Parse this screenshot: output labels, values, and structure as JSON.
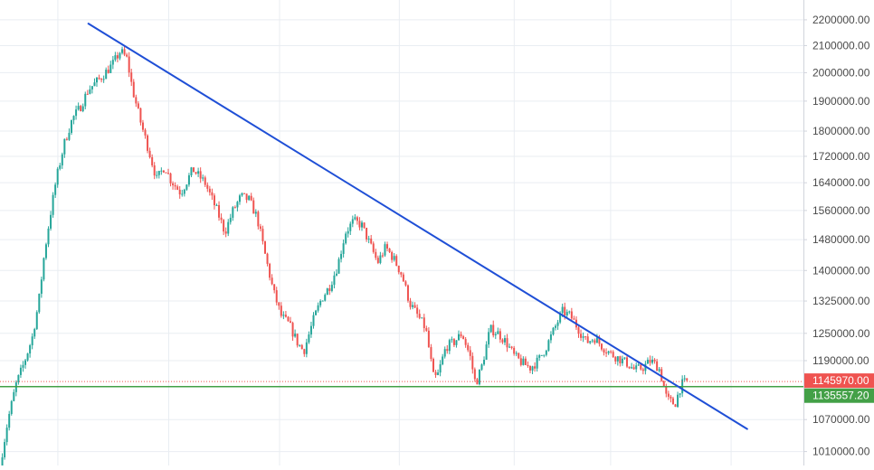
{
  "theme": {
    "background": "#ffffff",
    "grid": "#e9edf2",
    "axis_text": "#4a4a4a",
    "axis_border": "#d1d4dc",
    "up_color": "#26a69a",
    "down_color": "#ef5350",
    "trendline_color": "#1f4fd6",
    "last_price_color": "#ef5350",
    "level_color": "#43a047"
  },
  "chart_data": {
    "type": "candlestick",
    "y_scale": "log",
    "ylim": [
      985000,
      2280000
    ],
    "grid": true,
    "price_axis_ticks": [
      2200000,
      2100000,
      2000000,
      1900000,
      1800000,
      1720000,
      1640000,
      1560000,
      1480000,
      1400000,
      1325000,
      1250000,
      1190000,
      1070000,
      1010000
    ],
    "price_axis_ticks_text": [
      "2200000.00",
      "2100000.00",
      "2000000.00",
      "1900000.00",
      "1800000.00",
      "1720000.00",
      "1640000.00",
      "1560000.00",
      "1480000.00",
      "1400000.00",
      "1325000.00",
      "1250000.00",
      "1190000.00",
      "1070000.00",
      "1010000.00"
    ],
    "last_price": {
      "value": 1145970,
      "label": "1145970.00"
    },
    "horizontal_level": {
      "value": 1135557.2,
      "label": "1135557.20"
    },
    "trendline": {
      "start": [
        0.11,
        2185000
      ],
      "end": [
        0.93,
        1052000
      ]
    },
    "close_path": [
      [
        0.0,
        985000
      ],
      [
        0.01,
        1070000
      ],
      [
        0.02,
        1140000
      ],
      [
        0.03,
        1185000
      ],
      [
        0.04,
        1240000
      ],
      [
        0.048,
        1320000
      ],
      [
        0.055,
        1440000
      ],
      [
        0.062,
        1540000
      ],
      [
        0.07,
        1650000
      ],
      [
        0.08,
        1760000
      ],
      [
        0.09,
        1840000
      ],
      [
        0.1,
        1880000
      ],
      [
        0.11,
        1940000
      ],
      [
        0.125,
        1980000
      ],
      [
        0.14,
        2030000
      ],
      [
        0.15,
        2080000
      ],
      [
        0.158,
        2050000
      ],
      [
        0.165,
        1940000
      ],
      [
        0.175,
        1830000
      ],
      [
        0.185,
        1740000
      ],
      [
        0.195,
        1650000
      ],
      [
        0.205,
        1690000
      ],
      [
        0.212,
        1650000
      ],
      [
        0.225,
        1610000
      ],
      [
        0.24,
        1680000
      ],
      [
        0.255,
        1640000
      ],
      [
        0.27,
        1560000
      ],
      [
        0.28,
        1500000
      ],
      [
        0.29,
        1560000
      ],
      [
        0.3,
        1600000
      ],
      [
        0.31,
        1590000
      ],
      [
        0.32,
        1540000
      ],
      [
        0.33,
        1440000
      ],
      [
        0.34,
        1350000
      ],
      [
        0.35,
        1290000
      ],
      [
        0.36,
        1270000
      ],
      [
        0.37,
        1230000
      ],
      [
        0.378,
        1210000
      ],
      [
        0.39,
        1280000
      ],
      [
        0.4,
        1330000
      ],
      [
        0.41,
        1360000
      ],
      [
        0.42,
        1410000
      ],
      [
        0.43,
        1500000
      ],
      [
        0.44,
        1530000
      ],
      [
        0.45,
        1520000
      ],
      [
        0.46,
        1470000
      ],
      [
        0.47,
        1420000
      ],
      [
        0.48,
        1460000
      ],
      [
        0.49,
        1430000
      ],
      [
        0.5,
        1390000
      ],
      [
        0.51,
        1320000
      ],
      [
        0.52,
        1290000
      ],
      [
        0.53,
        1260000
      ],
      [
        0.54,
        1150000
      ],
      [
        0.545,
        1160000
      ],
      [
        0.555,
        1220000
      ],
      [
        0.565,
        1230000
      ],
      [
        0.575,
        1250000
      ],
      [
        0.585,
        1200000
      ],
      [
        0.592,
        1140000
      ],
      [
        0.6,
        1180000
      ],
      [
        0.61,
        1260000
      ],
      [
        0.62,
        1250000
      ],
      [
        0.63,
        1230000
      ],
      [
        0.64,
        1200000
      ],
      [
        0.65,
        1185000
      ],
      [
        0.66,
        1175000
      ],
      [
        0.67,
        1190000
      ],
      [
        0.68,
        1220000
      ],
      [
        0.69,
        1260000
      ],
      [
        0.7,
        1300000
      ],
      [
        0.71,
        1290000
      ],
      [
        0.72,
        1260000
      ],
      [
        0.73,
        1230000
      ],
      [
        0.74,
        1240000
      ],
      [
        0.75,
        1220000
      ],
      [
        0.76,
        1205000
      ],
      [
        0.77,
        1195000
      ],
      [
        0.78,
        1185000
      ],
      [
        0.79,
        1170000
      ],
      [
        0.8,
        1175000
      ],
      [
        0.81,
        1190000
      ],
      [
        0.82,
        1175000
      ],
      [
        0.825,
        1145000
      ],
      [
        0.83,
        1110000
      ],
      [
        0.84,
        1100000
      ],
      [
        0.848,
        1140000
      ],
      [
        0.855,
        1145970
      ]
    ]
  }
}
